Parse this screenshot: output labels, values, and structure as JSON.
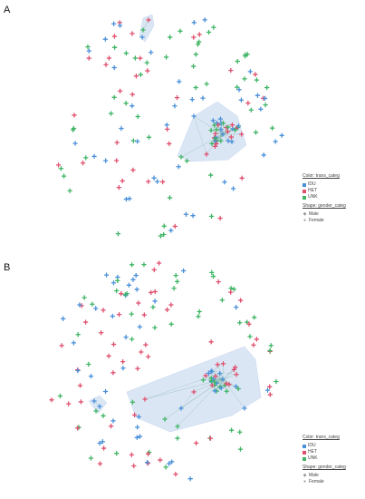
{
  "panels": [
    {
      "label": "A",
      "legend": {
        "color_title": "Color: trans_categ",
        "colors": [
          {
            "label": "IDU",
            "color": "#4a90d9"
          },
          {
            "label": "HET",
            "color": "#e0506e"
          },
          {
            "label": "UNK",
            "color": "#3fb565"
          }
        ],
        "shape_title": "Shape: gender_categ",
        "shapes": [
          {
            "label": "Male",
            "icon": "diamond-icon"
          },
          {
            "label": "Female",
            "icon": "circle-icon"
          }
        ]
      }
    },
    {
      "label": "B",
      "legend": {
        "color_title": "Color: trans_categ",
        "colors": [
          {
            "label": "IDU",
            "color": "#4a90d9"
          },
          {
            "label": "HET",
            "color": "#e0506e"
          },
          {
            "label": "UNK",
            "color": "#3fb565"
          }
        ],
        "shape_title": "Shape: gender_categ",
        "shapes": [
          {
            "label": "Male",
            "icon": "diamond-icon"
          },
          {
            "label": "Female",
            "icon": "circle-icon"
          }
        ]
      }
    }
  ],
  "colors": {
    "IDU": "#4a90d9",
    "HET": "#e0506e",
    "UNK": "#3fb565",
    "hull": "#dbe6f5"
  }
}
